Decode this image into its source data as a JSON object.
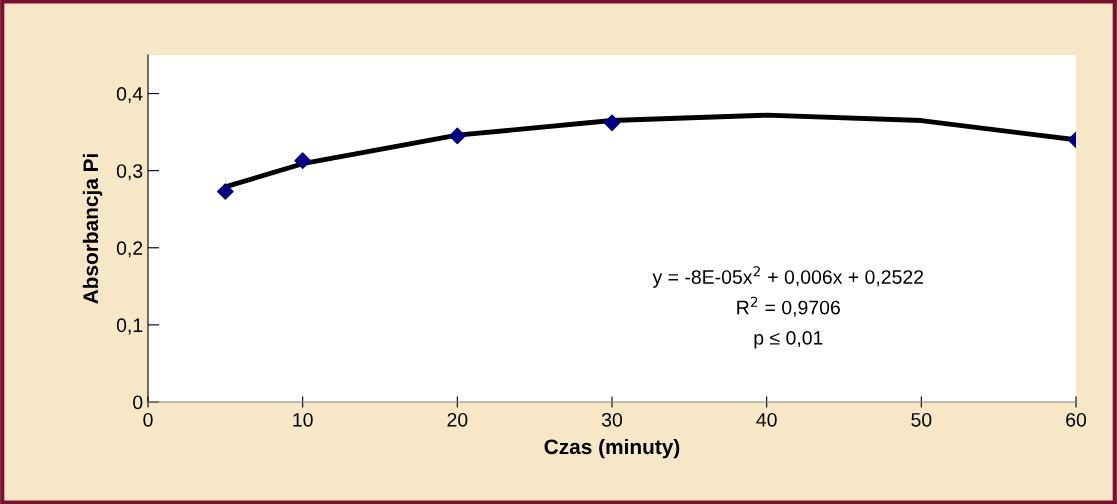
{
  "chart_data": {
    "type": "scatter",
    "xlabel": "Czas (minuty)",
    "ylabel": "Absorbancja Pi",
    "x": [
      5,
      10,
      20,
      30,
      60
    ],
    "series": [
      {
        "color": "#000080",
        "marker": "diamond",
        "values": [
          0.273,
          0.313,
          0.345,
          0.362,
          0.34
        ]
      },
      {
        "type": "line",
        "color": "#000000",
        "marker": "none",
        "line_style": "solid",
        "x": [
          5,
          10,
          20,
          30,
          40,
          50,
          60
        ],
        "values": [
          0.279,
          0.309,
          0.346,
          0.365,
          0.372,
          0.365,
          0.34
        ]
      }
    ],
    "xlim": [
      0,
      60
    ],
    "xticks": [
      0,
      10,
      20,
      30,
      40,
      50,
      60
    ],
    "ylim": [
      0,
      0.45
    ],
    "yticks": [
      {
        "value": 0,
        "label": "0"
      },
      {
        "value": 0.1,
        "label": "0,1"
      },
      {
        "value": 0.2,
        "label": "0,2"
      },
      {
        "value": 0.3,
        "label": "0,3"
      },
      {
        "value": 0.4,
        "label": "0,4"
      }
    ],
    "grid": false,
    "legend": false,
    "annotations": [
      "y = -8E-05x$^{2}$ + 0,006x + 0,2522",
      "R$^{2}$ = 0,9706",
      "p ≤ 0,01"
    ]
  }
}
